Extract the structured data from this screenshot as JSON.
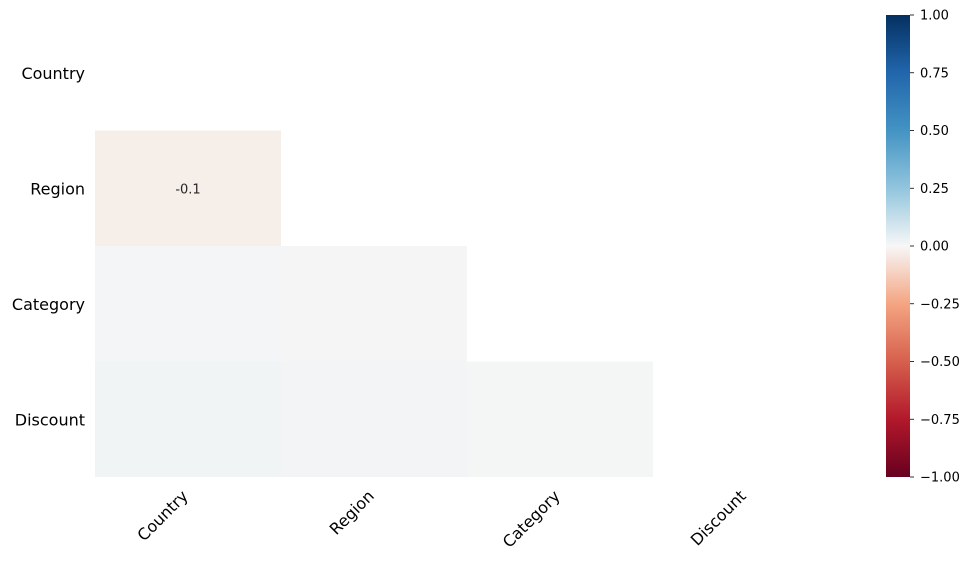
{
  "chart_data": {
    "type": "heatmap",
    "variables": [
      "Country",
      "Region",
      "Category",
      "Discount"
    ],
    "matrix_lower": [
      [
        "Country",
        "Region",
        -0.1
      ],
      [
        "Country",
        "Category",
        0.0
      ],
      [
        "Region",
        "Category",
        0.0
      ],
      [
        "Country",
        "Discount",
        0.0
      ],
      [
        "Region",
        "Discount",
        0.0
      ],
      [
        "Category",
        "Discount",
        0.0
      ]
    ],
    "cell_text": {
      "Region|Country": "-0.1"
    },
    "colorbar": {
      "vmin": -1.0,
      "vmax": 1.0,
      "ticks": [
        "1.00",
        "0.75",
        "0.50",
        "0.25",
        "0.00",
        "−0.25",
        "−0.50",
        "−0.75",
        "−1.00"
      ],
      "colors": {
        "low": "#67001f",
        "mid": "#f7f7f7",
        "high": "#053061"
      }
    },
    "cell_colors": {
      "Region|Country": "#f6eee8",
      "Category|Country": "#f3f5f6",
      "Category|Region": "#f5f5f5",
      "Discount|Country": "#f1f4f5",
      "Discount|Region": "#f2f4f5",
      "Discount|Category": "#f4f6f5"
    }
  }
}
